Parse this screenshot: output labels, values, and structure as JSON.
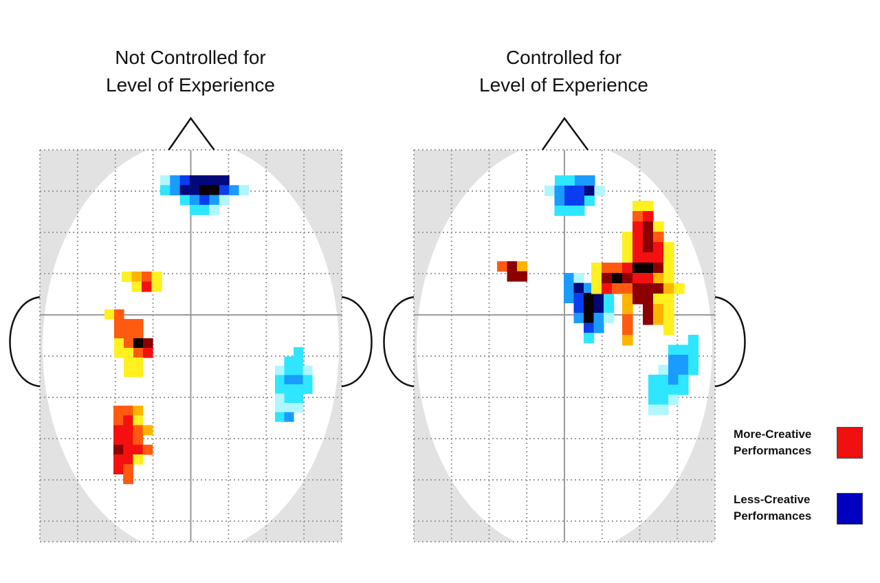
{
  "panels": [
    {
      "title_line1": "Not Controlled for",
      "title_line2": "Level of Experience"
    },
    {
      "title_line1": "Controlled for",
      "title_line2": "Level of Experience"
    }
  ],
  "legend": [
    {
      "line1": "More-Creative",
      "line2": "Performances",
      "color": "#f01010"
    },
    {
      "line1": "Less-Creative",
      "line2": "Performances",
      "color": "#0000c0"
    }
  ],
  "colors": {
    "head_background": "#e2e2e2",
    "grid": "#9a9a9a",
    "midline": "#9a9a9a",
    "outline": "#111111"
  }
}
